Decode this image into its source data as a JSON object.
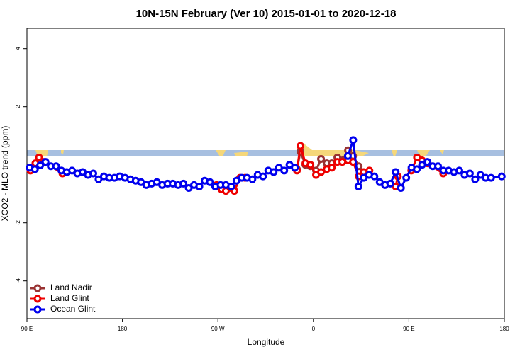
{
  "chart_data": {
    "type": "line",
    "title": "10N-15N February (Ver 10)   2015-01-01 to 2020-12-18",
    "xlabel": "Longitude",
    "ylabel": "XCO2 - MLO trend (ppm)",
    "xlim": [
      90,
      540
    ],
    "ylim": [
      -5.3,
      4.7
    ],
    "xticks": [
      {
        "value": 90,
        "label": "90 E"
      },
      {
        "value": 180,
        "label": "180"
      },
      {
        "value": 270,
        "label": "90 W"
      },
      {
        "value": 360,
        "label": "0"
      },
      {
        "value": 450,
        "label": "90 E"
      },
      {
        "value": 540,
        "label": "180"
      }
    ],
    "yticks": [
      -4,
      -2,
      2,
      4
    ],
    "legend": "bottom-left",
    "series": [
      {
        "name": "Land Nadir",
        "color": "#993333",
        "x": [
          344.5,
          347.8,
          352.5,
          357.2,
          362.5,
          367.2,
          372.6,
          377.3,
          382.6,
          387.3,
          392.7,
          397.4,
          402.7,
          407.4
        ],
        "values": [
          -0.15,
          0.45,
          0.0,
          -0.05,
          -0.2,
          0.2,
          0.05,
          0.05,
          0.25,
          0.15,
          0.5,
          0.3,
          -0.05,
          -0.3
        ]
      },
      {
        "name": "Land Glint",
        "color": "#ee0000",
        "x": [
          93.3,
          98,
          101.4,
          106,
          123.5,
          200,
          268.8,
          273.5,
          277.5,
          282,
          285.5,
          290.9,
          295.6,
          320,
          344.5,
          347.8,
          352.5,
          357.2,
          362.5,
          367.2,
          372.6,
          377.3,
          382.6,
          387.3,
          392.7,
          397.4,
          402.7,
          407.4,
          412.8,
          425,
          437.6,
          439.6,
          445,
          452.3,
          457.7,
          462.4,
          467.7,
          482.4
        ],
        "values": [
          -0.2,
          0.05,
          0.25,
          0.1,
          -0.3,
          null,
          -0.7,
          -0.85,
          -0.9,
          -0.8,
          -0.9,
          -0.45,
          -0.45,
          null,
          -0.2,
          0.65,
          0.05,
          0.0,
          -0.35,
          -0.25,
          -0.15,
          -0.1,
          0.1,
          0.1,
          0.15,
          0.1,
          -0.4,
          -0.25,
          -0.2,
          null,
          -0.75,
          -0.4,
          null,
          -0.2,
          0.25,
          0.15,
          0.05,
          -0.3
        ]
      },
      {
        "name": "Ocean Glint",
        "color": "#0000ee",
        "x": [
          92.5,
          97.5,
          102.5,
          107.5,
          112.5,
          117.5,
          122.5,
          127.5,
          132.5,
          137.5,
          142.5,
          147.5,
          152.5,
          157.5,
          162.5,
          167.5,
          172.5,
          177.5,
          182.5,
          187.5,
          192.5,
          197.5,
          202.5,
          207.5,
          212.5,
          217.5,
          222.5,
          227.5,
          232.5,
          237.5,
          242.5,
          247.5,
          252.5,
          257.5,
          262.5,
          267.5,
          272.5,
          277.5,
          282.5,
          287.5,
          292.5,
          297.5,
          302.5,
          307.5,
          312.5,
          317.5,
          322.5,
          327.5,
          332.5,
          337.5,
          342.5,
          367.5,
          392.5,
          397.5,
          402.5,
          407.5,
          412.5,
          417.5,
          422.5,
          427.5,
          432.5,
          437.5,
          442.5,
          447.5,
          452.5,
          457.5,
          462.5,
          467.5,
          472.5,
          477.5,
          482.5,
          487.5,
          492.5,
          497.5,
          502.5,
          507.5,
          512.5,
          517.5,
          522.5,
          527.5,
          537.5
        ],
        "values": [
          -0.1,
          -0.15,
          -0.02,
          0.1,
          -0.05,
          -0.05,
          -0.2,
          -0.25,
          -0.2,
          -0.3,
          -0.25,
          -0.35,
          -0.3,
          -0.5,
          -0.4,
          -0.45,
          -0.45,
          -0.4,
          -0.45,
          -0.5,
          -0.55,
          -0.6,
          -0.7,
          -0.65,
          -0.6,
          -0.7,
          -0.65,
          -0.65,
          -0.7,
          -0.65,
          -0.8,
          -0.7,
          -0.75,
          -0.55,
          -0.6,
          -0.75,
          -0.7,
          -0.7,
          -0.75,
          -0.55,
          -0.45,
          -0.45,
          -0.5,
          -0.35,
          -0.4,
          -0.2,
          -0.25,
          -0.1,
          -0.2,
          0.0,
          -0.1,
          null,
          0.3,
          0.85,
          -0.75,
          -0.45,
          -0.35,
          -0.4,
          -0.6,
          -0.7,
          -0.65,
          -0.25,
          -0.8,
          -0.45,
          -0.1,
          -0.15,
          0.0,
          0.1,
          -0.05,
          -0.05,
          -0.2,
          -0.2,
          -0.25,
          -0.2,
          -0.35,
          -0.3,
          -0.5,
          -0.35,
          -0.45,
          -0.45,
          -0.4
        ]
      }
    ]
  }
}
